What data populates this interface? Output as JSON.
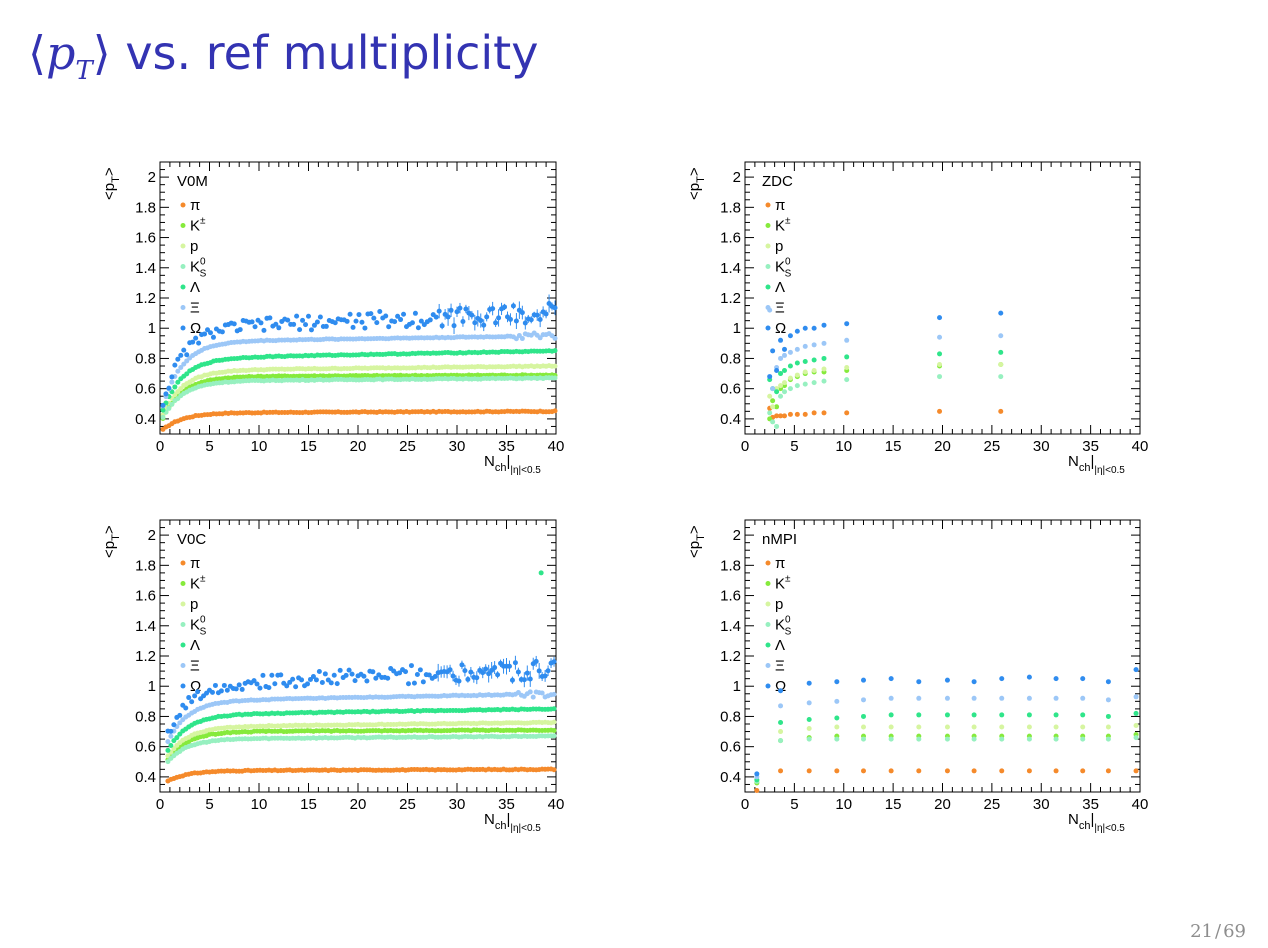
{
  "slide": {
    "title_prefix": "⟨",
    "title_var": "p",
    "title_sub": "T",
    "title_suffix": "⟩",
    "title_text": " vs. ref multiplicity",
    "page": "21",
    "page_sep": "/",
    "total": "69"
  },
  "colors": {
    "title": "#3333b2",
    "pi": "#f58a2b",
    "K": "#86ea3c",
    "p": "#d6f5a0",
    "K0S": "#97f0c0",
    "Lambda": "#2fe58a",
    "Xi": "#9cc7f7",
    "Omega": "#2f8cef"
  },
  "chart_data": [
    {
      "type": "scatter",
      "legend_title": "V0M",
      "ylabel": "<p_T>",
      "xlabel": "N_ch|_{|η|<0.5}",
      "xlim": [
        0,
        40
      ],
      "ylim": [
        0.3,
        2.1
      ],
      "xticks": [
        0,
        5,
        10,
        15,
        20,
        25,
        30,
        35,
        40
      ],
      "yticks": [
        "0.4",
        "0.6",
        "0.8",
        "1",
        "1.2",
        "1.4",
        "1.6",
        "1.8",
        "2"
      ],
      "mode": "dense",
      "x": [
        0.3,
        40,
        0.3
      ],
      "series": [
        {
          "name": "π",
          "key": "pi",
          "start": 0.31,
          "plateau": 0.44,
          "end": 0.45,
          "rise": 2.0
        },
        {
          "name": "K±",
          "key": "K",
          "start": 0.36,
          "plateau": 0.68,
          "end": 0.69,
          "rise": 2.0
        },
        {
          "name": "p",
          "key": "p",
          "start": 0.38,
          "plateau": 0.72,
          "end": 0.75,
          "rise": 2.0
        },
        {
          "name": "K0S",
          "key": "K0S",
          "start": 0.37,
          "plateau": 0.65,
          "end": 0.67,
          "rise": 2.0
        },
        {
          "name": "Λ",
          "key": "Lambda",
          "start": 0.4,
          "plateau": 0.8,
          "end": 0.85,
          "rise": 2.0
        },
        {
          "name": "Ξ",
          "key": "Xi",
          "start": 0.42,
          "plateau": 0.91,
          "end": 0.95,
          "rise": 2.0
        },
        {
          "name": "Ω",
          "key": "Omega",
          "start": 0.42,
          "plateau": 1.0,
          "end": 1.1,
          "rise": 2.0,
          "noisy": true
        }
      ]
    },
    {
      "type": "scatter",
      "legend_title": "ZDC",
      "ylabel": "<p_T>",
      "xlabel": "N_ch|_{|η|<0.5}",
      "xlim": [
        0,
        40
      ],
      "ylim": [
        0.3,
        2.1
      ],
      "xticks": [
        0,
        5,
        10,
        15,
        20,
        25,
        30,
        35,
        40
      ],
      "yticks": [
        "0.4",
        "0.6",
        "0.8",
        "1",
        "1.2",
        "1.4",
        "1.6",
        "1.8",
        "2"
      ],
      "mode": "sparse",
      "x": [
        2.5,
        2.8,
        3.2,
        3.6,
        4.0,
        4.6,
        5.3,
        6.1,
        7.0,
        8.0,
        10.3,
        19.7,
        25.9
      ],
      "series": [
        {
          "name": "π",
          "key": "pi",
          "values": [
            0.47,
            0.41,
            0.42,
            0.42,
            0.42,
            0.43,
            0.43,
            0.43,
            0.44,
            0.44,
            0.44,
            0.45,
            0.45
          ]
        },
        {
          "name": "K±",
          "key": "K",
          "values": [
            0.4,
            0.52,
            0.48,
            0.6,
            0.62,
            0.66,
            0.68,
            0.7,
            0.71,
            0.71,
            0.72,
            0.75,
            0.76
          ]
        },
        {
          "name": "p",
          "key": "p",
          "values": [
            0.55,
            0.48,
            0.6,
            0.62,
            0.64,
            0.67,
            0.69,
            0.71,
            0.72,
            0.73,
            0.74,
            0.76,
            0.76
          ]
        },
        {
          "name": "K0S",
          "key": "K0S",
          "values": [
            0.44,
            0.38,
            0.35,
            0.55,
            0.58,
            0.6,
            0.62,
            0.63,
            0.64,
            0.65,
            0.66,
            0.68,
            0.68
          ]
        },
        {
          "name": "Λ",
          "key": "Lambda",
          "values": [
            0.66,
            0.6,
            0.58,
            0.7,
            0.72,
            0.75,
            0.77,
            0.78,
            0.79,
            0.8,
            0.81,
            0.83,
            0.84
          ]
        },
        {
          "name": "Ξ",
          "key": "Xi",
          "values": [
            1.12,
            0.6,
            0.74,
            0.8,
            0.82,
            0.84,
            0.86,
            0.88,
            0.89,
            0.9,
            0.92,
            0.94,
            0.95
          ]
        },
        {
          "name": "Ω",
          "key": "Omega",
          "values": [
            0.68,
            0.85,
            0.72,
            0.92,
            0.86,
            0.95,
            0.98,
            1.0,
            1.0,
            1.02,
            1.03,
            1.07,
            1.1
          ]
        }
      ]
    },
    {
      "type": "scatter",
      "legend_title": "V0C",
      "ylabel": "<p_T>",
      "xlabel": "N_ch|_{|η|<0.5}",
      "xlim": [
        0,
        40
      ],
      "ylim": [
        0.3,
        2.1
      ],
      "xticks": [
        0,
        5,
        10,
        15,
        20,
        25,
        30,
        35,
        40
      ],
      "yticks": [
        "0.4",
        "0.6",
        "0.8",
        "1",
        "1.2",
        "1.4",
        "1.6",
        "1.8",
        "2"
      ],
      "mode": "dense",
      "x": [
        0.8,
        40,
        0.3
      ],
      "series": [
        {
          "name": "π",
          "key": "pi",
          "start": 0.34,
          "plateau": 0.44,
          "end": 0.45,
          "rise": 2.0
        },
        {
          "name": "K±",
          "key": "K",
          "start": 0.42,
          "plateau": 0.7,
          "end": 0.71,
          "rise": 2.0
        },
        {
          "name": "p",
          "key": "p",
          "start": 0.44,
          "plateau": 0.73,
          "end": 0.76,
          "rise": 2.0
        },
        {
          "name": "K0S",
          "key": "K0S",
          "start": 0.43,
          "plateau": 0.65,
          "end": 0.67,
          "rise": 2.0
        },
        {
          "name": "Λ",
          "key": "Lambda",
          "start": 0.46,
          "plateau": 0.81,
          "end": 0.85,
          "rise": 2.0
        },
        {
          "name": "Ξ",
          "key": "Xi",
          "start": 0.5,
          "plateau": 0.9,
          "end": 0.95,
          "rise": 2.0
        },
        {
          "name": "Ω",
          "key": "Omega",
          "start": 0.52,
          "plateau": 1.0,
          "end": 1.12,
          "rise": 2.0,
          "noisy": true
        }
      ],
      "outliers": [
        {
          "key": "Lambda",
          "x": 38.5,
          "y": 1.75
        }
      ]
    },
    {
      "type": "scatter",
      "legend_title": "nMPI",
      "ylabel": "<p_T>",
      "xlabel": "N_ch|_{|η|<0.5}",
      "xlim": [
        0,
        40
      ],
      "ylim": [
        0.3,
        2.1
      ],
      "xticks": [
        0,
        5,
        10,
        15,
        20,
        25,
        30,
        35,
        40
      ],
      "yticks": [
        "0.4",
        "0.6",
        "0.8",
        "1",
        "1.2",
        "1.4",
        "1.6",
        "1.8",
        "2"
      ],
      "mode": "sparse",
      "x": [
        1.2,
        3.6,
        6.5,
        9.3,
        12.0,
        14.8,
        17.6,
        20.5,
        23.2,
        26.0,
        28.8,
        31.5,
        34.2,
        36.8,
        39.6
      ],
      "series": [
        {
          "name": "π",
          "key": "pi",
          "values": [
            0.31,
            0.44,
            0.44,
            0.44,
            0.44,
            0.44,
            0.44,
            0.44,
            0.44,
            0.44,
            0.44,
            0.44,
            0.44,
            0.44,
            0.44
          ]
        },
        {
          "name": "K±",
          "key": "K",
          "values": [
            0.36,
            0.64,
            0.66,
            0.67,
            0.67,
            0.67,
            0.67,
            0.67,
            0.67,
            0.67,
            0.67,
            0.67,
            0.67,
            0.67,
            0.68
          ]
        },
        {
          "name": "p",
          "key": "p",
          "values": [
            0.38,
            0.7,
            0.72,
            0.73,
            0.73,
            0.73,
            0.73,
            0.73,
            0.73,
            0.73,
            0.73,
            0.73,
            0.73,
            0.73,
            0.74
          ]
        },
        {
          "name": "K0S",
          "key": "K0S",
          "values": [
            0.37,
            0.64,
            0.65,
            0.65,
            0.65,
            0.65,
            0.65,
            0.65,
            0.65,
            0.65,
            0.65,
            0.65,
            0.65,
            0.65,
            0.66
          ]
        },
        {
          "name": "Λ",
          "key": "Lambda",
          "values": [
            0.38,
            0.76,
            0.78,
            0.79,
            0.8,
            0.81,
            0.81,
            0.81,
            0.81,
            0.81,
            0.81,
            0.81,
            0.81,
            0.8,
            0.82
          ]
        },
        {
          "name": "Ξ",
          "key": "Xi",
          "values": [
            0.4,
            0.87,
            0.89,
            0.9,
            0.91,
            0.92,
            0.92,
            0.92,
            0.92,
            0.92,
            0.92,
            0.92,
            0.92,
            0.91,
            0.93
          ]
        },
        {
          "name": "Ω",
          "key": "Omega",
          "values": [
            0.42,
            0.97,
            1.02,
            1.03,
            1.04,
            1.05,
            1.03,
            1.04,
            1.03,
            1.05,
            1.06,
            1.05,
            1.05,
            1.03,
            1.11
          ]
        }
      ]
    }
  ]
}
